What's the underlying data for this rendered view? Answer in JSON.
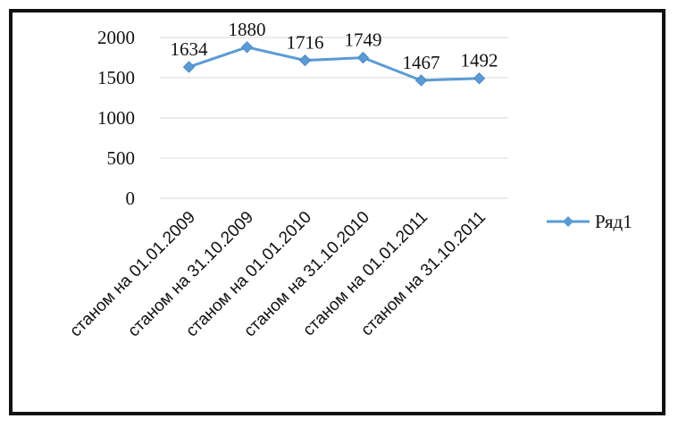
{
  "chart_data": {
    "type": "line",
    "categories": [
      "станом на 01.01.2009",
      "станом на 31.10.2009",
      "станом на 01.01.2010",
      "станом на 31.10.2010",
      "станом на 01.01.2011",
      "станом на 31.10.2011"
    ],
    "series": [
      {
        "name": "Ряд1",
        "values": [
          1634,
          1880,
          1716,
          1749,
          1467,
          1492
        ]
      }
    ],
    "data_labels": [
      "1634",
      "1880",
      "1716",
      "1749",
      "1467",
      "1492"
    ],
    "ylim": [
      0,
      2000
    ],
    "yticks": [
      "0",
      "500",
      "1000",
      "1500",
      "2000"
    ],
    "grid": true,
    "legend_position": "right",
    "series_color": "#5b9bd5",
    "title": "",
    "xlabel": "",
    "ylabel": ""
  }
}
